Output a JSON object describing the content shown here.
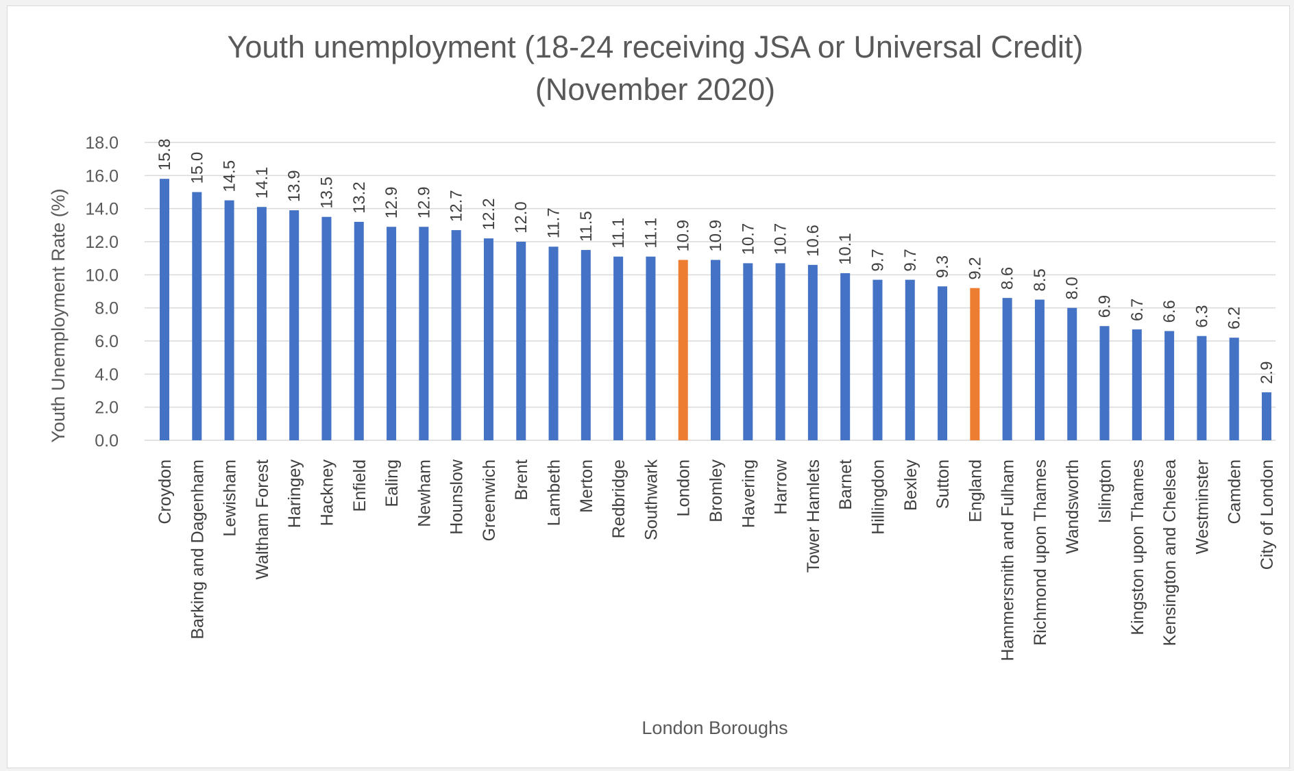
{
  "chart_data": {
    "type": "bar",
    "title": "Youth unemployment (18-24 receiving JSA or Universal Credit)",
    "subtitle": "(November 2020)",
    "xlabel": "London Boroughs",
    "ylabel": "Youth Unemployment Rate (%)",
    "ylim": [
      0,
      18
    ],
    "ytick_step": 2,
    "ytick_labels": [
      "0.0",
      "2.0",
      "4.0",
      "6.0",
      "8.0",
      "10.0",
      "12.0",
      "14.0",
      "16.0",
      "18.0"
    ],
    "grid": true,
    "legend": "none",
    "categories": [
      "Croydon",
      "Barking and Dagenham",
      "Lewisham",
      "Waltham Forest",
      "Haringey",
      "Hackney",
      "Enfield",
      "Ealing",
      "Newham",
      "Hounslow",
      "Greenwich",
      "Brent",
      "Lambeth",
      "Merton",
      "Redbridge",
      "Southwark",
      "London",
      "Bromley",
      "Havering",
      "Harrow",
      "Tower Hamlets",
      "Barnet",
      "Hillingdon",
      "Bexley",
      "Sutton",
      "England",
      "Hammersmith and Fulham",
      "Richmond upon Thames",
      "Wandsworth",
      "Islington",
      "Kingston upon Thames",
      "Kensington and Chelsea",
      "Westminster",
      "Camden",
      "City of London"
    ],
    "values": [
      15.8,
      15.0,
      14.5,
      14.1,
      13.9,
      13.5,
      13.2,
      12.9,
      12.9,
      12.7,
      12.2,
      12.0,
      11.7,
      11.5,
      11.1,
      11.1,
      10.9,
      10.9,
      10.7,
      10.7,
      10.6,
      10.1,
      9.7,
      9.7,
      9.3,
      9.2,
      8.6,
      8.5,
      8.0,
      6.9,
      6.7,
      6.6,
      6.3,
      6.2,
      2.9
    ],
    "highlighted_categories": [
      "London",
      "England"
    ],
    "colors": {
      "bar": "#4472c4",
      "highlight": "#ed7d31",
      "grid": "#d9d9d9",
      "axis_text": "#595959"
    }
  }
}
